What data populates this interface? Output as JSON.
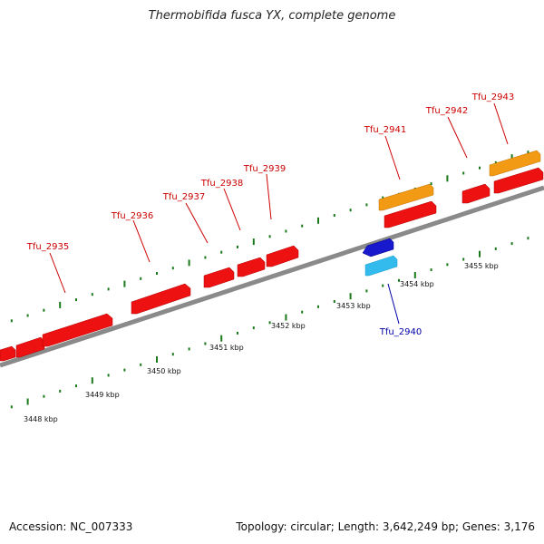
{
  "title": "Thermobifida fusca YX, complete genome",
  "footer": {
    "accession": "Accession: NC_007333",
    "summary": "Topology: circular; Length: 3,642,249 bp; Genes: 3,176"
  },
  "colors": {
    "forward_cds": "#ee1111",
    "forward_other": "#f39a14",
    "reverse_cds": "#1818cc",
    "reverse_other": "#33bbee",
    "backbone": "#8a8a8a",
    "ticks": "#1a7a1a",
    "label_forward": "#cc0000",
    "label_reverse": "#0000aa"
  },
  "kbp_labels": [
    "3448 kbp",
    "3449 kbp",
    "3450 kbp",
    "3451 kbp",
    "3452 kbp",
    "3453 kbp",
    "3454 kbp",
    "3455 kbp"
  ],
  "genes": [
    {
      "label": "",
      "strand": "forward",
      "kind": "cds"
    },
    {
      "label": "",
      "strand": "forward",
      "kind": "cds"
    },
    {
      "label": "Tfu_2935",
      "strand": "forward",
      "kind": "cds"
    },
    {
      "label": "Tfu_2936",
      "strand": "forward",
      "kind": "cds"
    },
    {
      "label": "Tfu_2937",
      "strand": "forward",
      "kind": "cds"
    },
    {
      "label": "Tfu_2938",
      "strand": "forward",
      "kind": "cds"
    },
    {
      "label": "Tfu_2939",
      "strand": "forward",
      "kind": "cds"
    },
    {
      "label": "Tfu_2941",
      "strand": "forward",
      "kind": "cds_with_feature"
    },
    {
      "label": "Tfu_2942",
      "strand": "forward",
      "kind": "cds"
    },
    {
      "label": "Tfu_2943",
      "strand": "forward",
      "kind": "cds_with_feature"
    },
    {
      "label": "Tfu_2940",
      "strand": "reverse",
      "kind": "cds_with_feature"
    }
  ]
}
